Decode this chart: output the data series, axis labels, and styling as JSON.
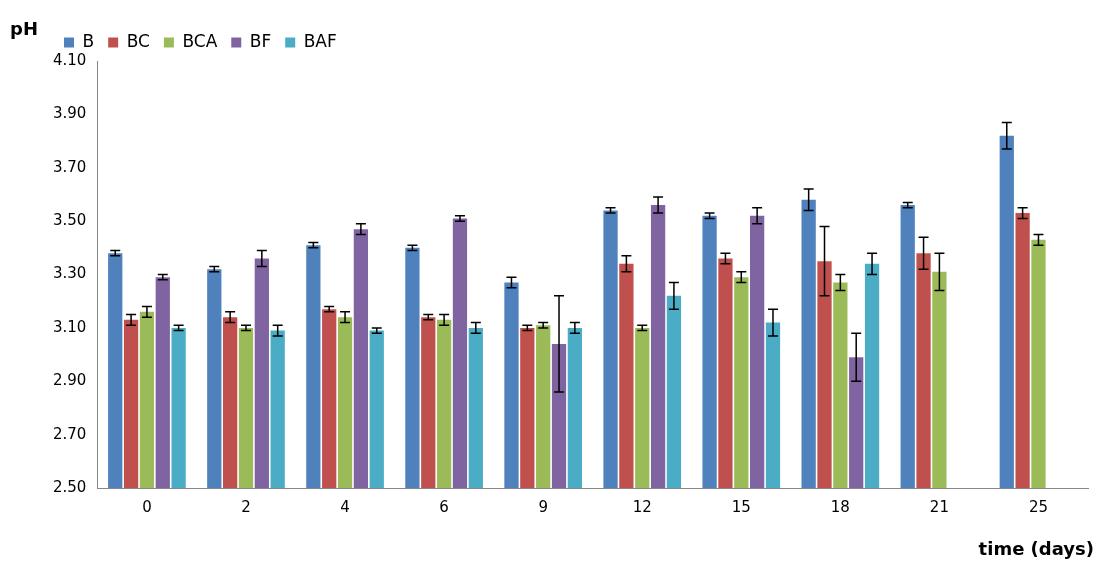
{
  "chart_data": {
    "type": "bar",
    "xlabel": "time (days)",
    "ylabel": "pH",
    "categories": [
      "0",
      "2",
      "4",
      "6",
      "9",
      "12",
      "15",
      "18",
      "21",
      "25"
    ],
    "series": [
      {
        "name": "B",
        "color": "#4f81bd",
        "values": [
          3.38,
          3.32,
          3.41,
          3.4,
          3.27,
          3.54,
          3.52,
          3.58,
          3.56,
          3.82
        ],
        "errors": [
          0.01,
          0.01,
          0.01,
          0.01,
          0.02,
          0.01,
          0.01,
          0.04,
          0.01,
          0.05
        ]
      },
      {
        "name": "BC",
        "color": "#c0504d",
        "values": [
          3.13,
          3.14,
          3.17,
          3.14,
          3.1,
          3.34,
          3.36,
          3.35,
          3.38,
          3.53
        ],
        "errors": [
          0.02,
          0.02,
          0.01,
          0.01,
          0.01,
          0.03,
          0.02,
          0.13,
          0.06,
          0.02
        ]
      },
      {
        "name": "BCA",
        "color": "#9bbb59",
        "values": [
          3.16,
          3.1,
          3.14,
          3.13,
          3.11,
          3.1,
          3.29,
          3.27,
          3.31,
          3.43
        ],
        "errors": [
          0.02,
          0.01,
          0.02,
          0.02,
          0.01,
          0.01,
          0.02,
          0.03,
          0.07,
          0.02
        ]
      },
      {
        "name": "BF",
        "color": "#8064a2",
        "values": [
          3.29,
          3.36,
          3.47,
          3.51,
          3.04,
          3.56,
          3.52,
          2.99,
          null,
          null
        ],
        "errors": [
          0.01,
          0.03,
          0.02,
          0.01,
          0.18,
          0.03,
          0.03,
          0.09,
          null,
          null
        ]
      },
      {
        "name": "BAF",
        "color": "#4bacc6",
        "values": [
          3.1,
          3.09,
          3.09,
          3.1,
          3.1,
          3.22,
          3.12,
          3.34,
          null,
          null
        ],
        "errors": [
          0.01,
          0.02,
          0.01,
          0.02,
          0.02,
          0.05,
          0.05,
          0.04,
          null,
          null
        ]
      }
    ],
    "ylim": [
      2.5,
      4.1
    ],
    "yticks": [
      {
        "value": 2.5,
        "label": "2.50"
      },
      {
        "value": 2.7,
        "label": "2.70"
      },
      {
        "value": 2.9,
        "label": "2.90"
      },
      {
        "value": 3.1,
        "label": "3.10"
      },
      {
        "value": 3.3,
        "label": "3.30"
      },
      {
        "value": 3.5,
        "label": "3.50"
      },
      {
        "value": 3.7,
        "label": "3.70"
      },
      {
        "value": 3.9,
        "label": "3.90"
      },
      {
        "value": 4.1,
        "label": "4.10"
      }
    ],
    "grid": false,
    "legend": "top left"
  }
}
